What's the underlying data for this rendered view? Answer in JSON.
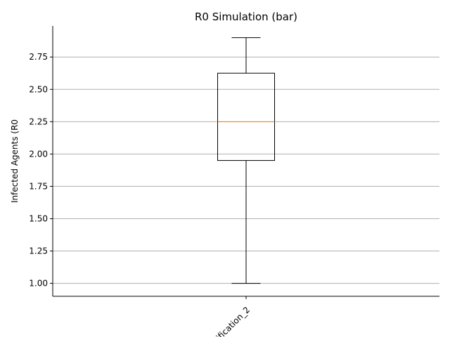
{
  "chart_data": {
    "type": "box",
    "title": "R0 Simulation (bar)",
    "xlabel": "",
    "ylabel": "Infected Agents (R0",
    "ylim": [
      0.9,
      2.99
    ],
    "yticks": [
      1.0,
      1.25,
      1.5,
      1.75,
      2.0,
      2.25,
      2.5,
      2.75
    ],
    "ytick_labels": [
      "1.00",
      "1.25",
      "1.50",
      "1.75",
      "2.00",
      "2.25",
      "2.50",
      "2.75"
    ],
    "grid": "y",
    "categories": [
      "ification_2"
    ],
    "boxes": [
      {
        "category": "ification_2",
        "whisker_low": 1.0,
        "q1": 1.95,
        "median": 2.25,
        "q3": 2.625,
        "whisker_high": 2.9
      }
    ],
    "colors": {
      "box": "#000000",
      "median": "#ff7f0e",
      "grid": "#b0b0b0"
    }
  }
}
